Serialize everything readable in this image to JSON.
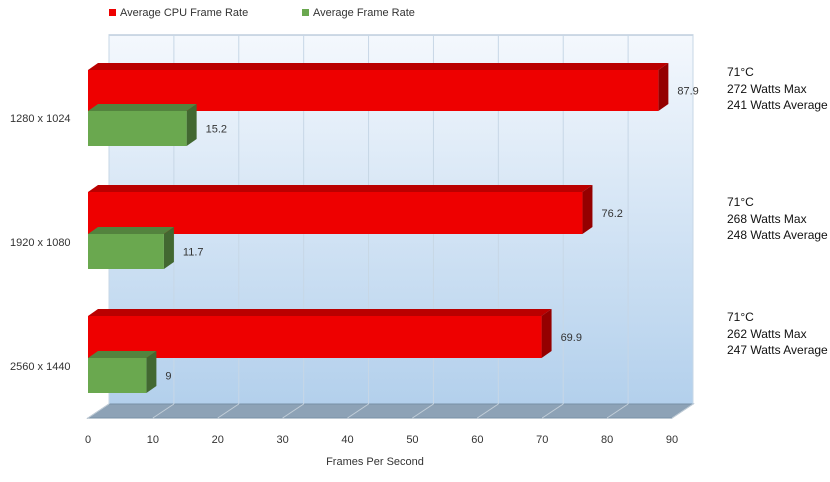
{
  "chart_data": {
    "type": "bar",
    "orientation": "horizontal",
    "title": "",
    "xlabel": "Frames Per Second",
    "ylabel": "",
    "categories": [
      "1280 x 1024",
      "1920 x 1080",
      "2560 x 1440"
    ],
    "series": [
      {
        "name": "Average CPU Frame Rate",
        "color": "#ee0000",
        "values": [
          87.9,
          76.2,
          69.9
        ]
      },
      {
        "name": "Average Frame Rate",
        "color": "#6aa84f",
        "values": [
          15.2,
          11.7,
          9
        ]
      }
    ],
    "xlim": [
      0,
      90
    ],
    "xticks": [
      "0",
      "10",
      "20",
      "30",
      "40",
      "50",
      "60",
      "70",
      "80",
      "90"
    ],
    "grid": true,
    "legend_position": "top-left",
    "three_d": true
  },
  "side_notes": [
    {
      "temp": "71°C",
      "max": "272 Watts Max",
      "avg": "241 Watts Average"
    },
    {
      "temp": "71°C",
      "max": "268 Watts Max",
      "avg": "248 Watts Average"
    },
    {
      "temp": "71°C",
      "max": "262 Watts Max",
      "avg": "247 Watts Average"
    }
  ]
}
